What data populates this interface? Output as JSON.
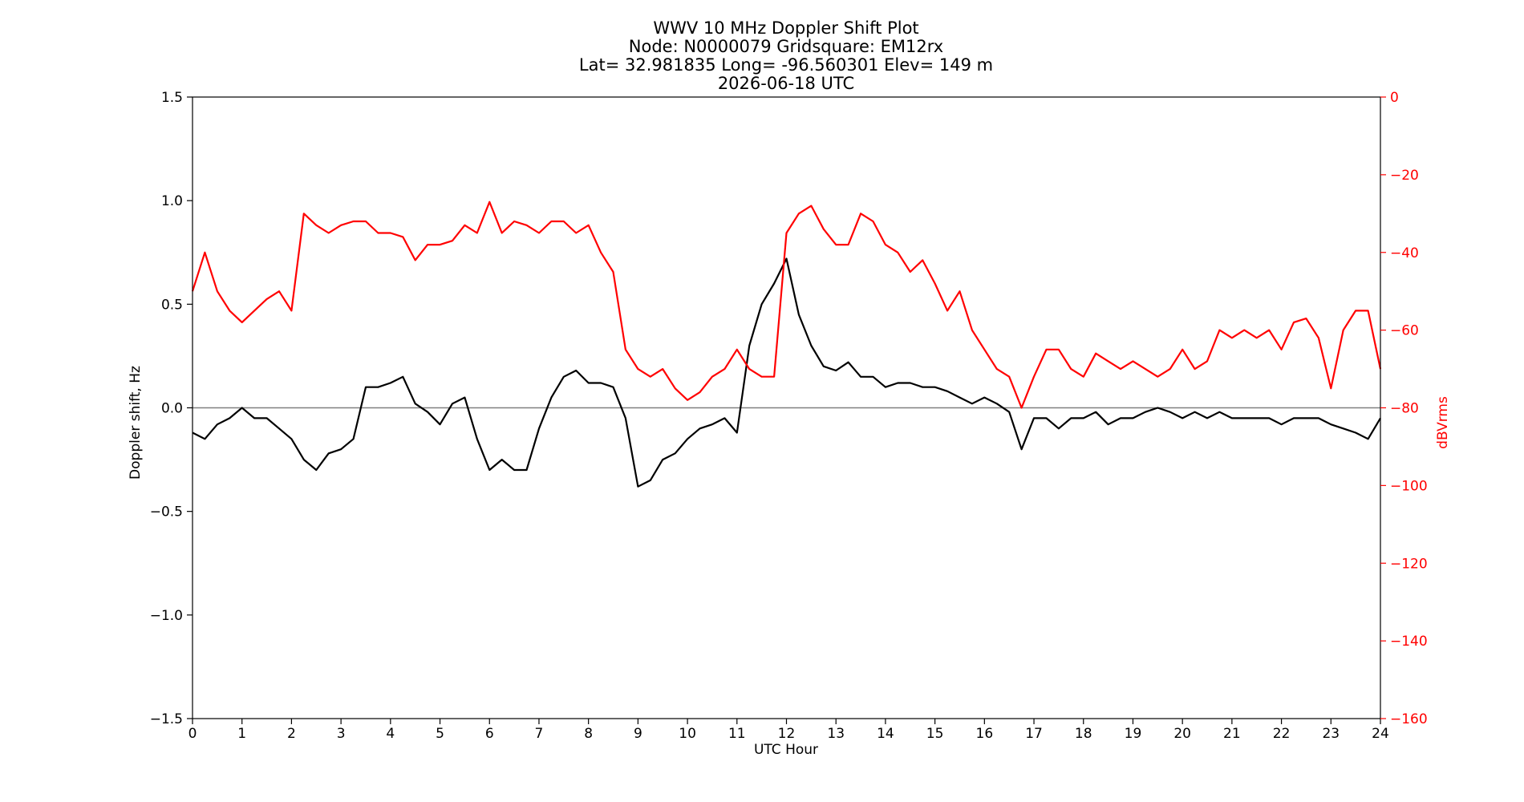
{
  "chart_data": {
    "type": "line",
    "title_lines": [
      "WWV 10 MHz Doppler Shift Plot",
      "Node:  N0000079     Gridsquare:  EM12rx",
      "Lat= 32.981835    Long= -96.560301    Elev= 149 m",
      "2026-06-18  UTC"
    ],
    "xlabel": "UTC Hour",
    "ylabel_left": "Doppler shift, Hz",
    "ylabel_right": "dBVrms",
    "xlim": [
      0,
      24
    ],
    "ylim_left": [
      -1.5,
      1.5
    ],
    "ylim_right": [
      -160,
      0
    ],
    "x_ticks": [
      "0",
      "1",
      "2",
      "3",
      "4",
      "5",
      "6",
      "7",
      "8",
      "9",
      "10",
      "11",
      "12",
      "13",
      "14",
      "15",
      "16",
      "17",
      "18",
      "19",
      "20",
      "21",
      "22",
      "23",
      "24"
    ],
    "y_ticks_left": [
      "1.5",
      "1.0",
      "0.5",
      "0.0",
      "−0.5",
      "−1.0",
      "−1.5"
    ],
    "y_ticks_right": [
      "0",
      "−20",
      "−40",
      "−60",
      "−80",
      "−100",
      "−120",
      "−140",
      "−160"
    ],
    "reference_line_y": 0.0,
    "colors": {
      "doppler": "#000000",
      "power": "#ff0000",
      "zero_line": "#808080",
      "right_axis": "#ff0000"
    },
    "series": [
      {
        "axis": "left",
        "x": [
          0,
          0.25,
          0.5,
          0.75,
          1,
          1.25,
          1.5,
          1.75,
          2,
          2.25,
          2.5,
          2.75,
          3,
          3.25,
          3.5,
          3.75,
          4,
          4.25,
          4.5,
          4.75,
          5,
          5.25,
          5.5,
          5.75,
          6,
          6.25,
          6.5,
          6.75,
          7,
          7.25,
          7.5,
          7.75,
          8,
          8.25,
          8.5,
          8.75,
          9,
          9.25,
          9.5,
          9.75,
          10,
          10.25,
          10.5,
          10.75,
          11,
          11.25,
          11.5,
          11.75,
          12,
          12.25,
          12.5,
          12.75,
          13,
          13.25,
          13.5,
          13.75,
          14,
          14.25,
          14.5,
          14.75,
          15,
          15.25,
          15.5,
          15.75,
          16,
          16.25,
          16.5,
          16.75,
          17,
          17.25,
          17.5,
          17.75,
          18,
          18.25,
          18.5,
          18.75,
          19,
          19.25,
          19.5,
          19.75,
          20,
          20.25,
          20.5,
          20.75,
          21,
          21.25,
          21.5,
          21.75,
          22,
          22.25,
          22.5,
          22.75,
          23,
          23.25,
          23.5,
          23.75,
          24
        ],
        "values": [
          -0.12,
          -0.15,
          -0.08,
          -0.05,
          0,
          -0.05,
          -0.05,
          -0.1,
          -0.15,
          -0.25,
          -0.3,
          -0.22,
          -0.2,
          -0.15,
          0.1,
          0.1,
          0.12,
          0.15,
          0.02,
          -0.02,
          -0.08,
          0.02,
          0.05,
          -0.15,
          -0.3,
          -0.25,
          -0.3,
          -0.3,
          -0.1,
          0.05,
          0.15,
          0.18,
          0.12,
          0.12,
          0.1,
          -0.05,
          -0.38,
          -0.35,
          -0.25,
          -0.22,
          -0.15,
          -0.1,
          -0.08,
          -0.05,
          -0.12,
          0.3,
          0.5,
          0.6,
          0.72,
          0.45,
          0.3,
          0.2,
          0.18,
          0.22,
          0.15,
          0.15,
          0.1,
          0.12,
          0.12,
          0.1,
          0.1,
          0.08,
          0.05,
          0.02,
          0.05,
          0.02,
          -0.02,
          -0.2,
          -0.05,
          -0.05,
          -0.1,
          -0.05,
          -0.05,
          -0.02,
          -0.08,
          -0.05,
          -0.05,
          -0.02,
          0,
          -0.02,
          -0.05,
          -0.02,
          -0.05,
          -0.02,
          -0.05,
          -0.05,
          -0.05,
          -0.05,
          -0.08,
          -0.05,
          -0.05,
          -0.05,
          -0.08,
          -0.1,
          -0.12,
          -0.15,
          -0.05
        ]
      },
      {
        "axis": "right",
        "x": [
          0,
          0.25,
          0.5,
          0.75,
          1,
          1.25,
          1.5,
          1.75,
          2,
          2.25,
          2.5,
          2.75,
          3,
          3.25,
          3.5,
          3.75,
          4,
          4.25,
          4.5,
          4.75,
          5,
          5.25,
          5.5,
          5.75,
          6,
          6.25,
          6.5,
          6.75,
          7,
          7.25,
          7.5,
          7.75,
          8,
          8.25,
          8.5,
          8.75,
          9,
          9.25,
          9.5,
          9.75,
          10,
          10.25,
          10.5,
          10.75,
          11,
          11.25,
          11.5,
          11.75,
          12,
          12.25,
          12.5,
          12.75,
          13,
          13.25,
          13.5,
          13.75,
          14,
          14.25,
          14.5,
          14.75,
          15,
          15.25,
          15.5,
          15.75,
          16,
          16.25,
          16.5,
          16.75,
          17,
          17.25,
          17.5,
          17.75,
          18,
          18.25,
          18.5,
          18.75,
          19,
          19.25,
          19.5,
          19.75,
          20,
          20.25,
          20.5,
          20.75,
          21,
          21.25,
          21.5,
          21.75,
          22,
          22.25,
          22.5,
          22.75,
          23,
          23.25,
          23.5,
          23.75,
          24
        ],
        "values": [
          -50,
          -40,
          -50,
          -55,
          -58,
          -55,
          -52,
          -50,
          -55,
          -30,
          -33,
          -35,
          -33,
          -32,
          -32,
          -35,
          -35,
          -36,
          -42,
          -38,
          -38,
          -37,
          -33,
          -35,
          -27,
          -35,
          -32,
          -33,
          -35,
          -32,
          -32,
          -35,
          -33,
          -40,
          -45,
          -65,
          -70,
          -72,
          -70,
          -75,
          -78,
          -76,
          -72,
          -70,
          -65,
          -70,
          -72,
          -72,
          -35,
          -30,
          -28,
          -34,
          -38,
          -38,
          -30,
          -32,
          -38,
          -40,
          -45,
          -42,
          -48,
          -55,
          -50,
          -60,
          -65,
          -70,
          -72,
          -80,
          -72,
          -65,
          -65,
          -70,
          -72,
          -66,
          -68,
          -70,
          -68,
          -70,
          -72,
          -70,
          -65,
          -70,
          -68,
          -60,
          -62,
          -60,
          -62,
          -60,
          -65,
          -58,
          -57,
          -62,
          -75,
          -60,
          -55,
          -55,
          -70
        ]
      }
    ]
  }
}
